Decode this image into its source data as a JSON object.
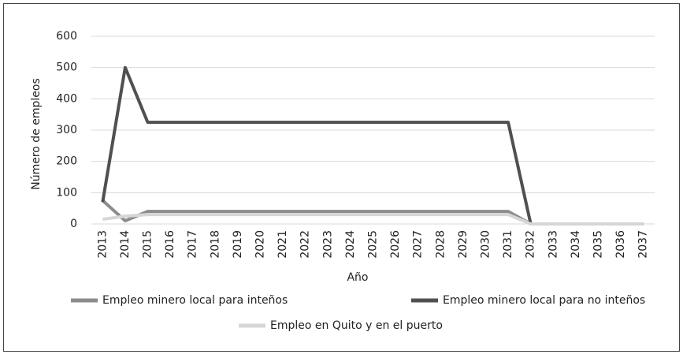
{
  "chart_data": {
    "type": "line",
    "x_label": "Año",
    "y_label": "Número de empleos",
    "categories": [
      "2013",
      "2014",
      "2015",
      "2016",
      "2017",
      "2018",
      "2019",
      "2020",
      "2021",
      "2022",
      "2023",
      "2024",
      "2025",
      "2026",
      "2027",
      "2028",
      "2029",
      "2030",
      "2031",
      "2032",
      "2033",
      "2034",
      "2035",
      "2036",
      "2037"
    ],
    "series": [
      {
        "name": "Empleo minero local para inteños",
        "color": "#8c8c8c",
        "values": [
          75,
          10,
          40,
          40,
          40,
          40,
          40,
          40,
          40,
          40,
          40,
          40,
          40,
          40,
          40,
          40,
          40,
          40,
          40,
          0,
          0,
          0,
          0,
          0,
          0
        ]
      },
      {
        "name": "Empleo minero local para no inteños",
        "color": "#505050",
        "values": [
          70,
          500,
          325,
          325,
          325,
          325,
          325,
          325,
          325,
          325,
          325,
          325,
          325,
          325,
          325,
          325,
          325,
          325,
          325,
          0,
          0,
          0,
          0,
          0,
          0
        ]
      },
      {
        "name": "Empleo en Quito y en el puerto",
        "color": "#d6d6d6",
        "values": [
          15,
          25,
          30,
          30,
          30,
          30,
          30,
          30,
          30,
          30,
          30,
          30,
          30,
          30,
          30,
          30,
          30,
          30,
          30,
          0,
          0,
          0,
          0,
          0,
          0
        ]
      }
    ],
    "ylim": [
      0,
      600
    ],
    "yticks": [
      0,
      100,
      200,
      300,
      400,
      500,
      600
    ],
    "grid": true
  }
}
